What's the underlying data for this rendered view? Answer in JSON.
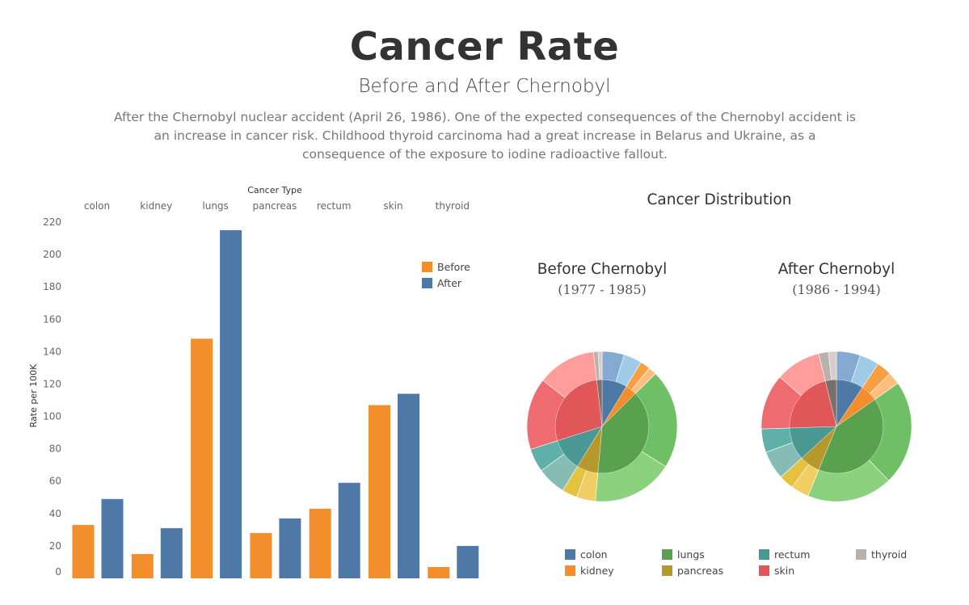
{
  "title": "Cancer Rate",
  "subtitle": "Before and After Chernobyl",
  "description": "After the Chernobyl nuclear accident (April 26, 1986). One of the expected consequences of the Chernobyl accident is an increase in cancer risk. Childhood thyroid carcinoma had a great increase in Belarus and Ukraine, as a consequence of the exposure to iodine radioactive fallout.",
  "chart_data": [
    {
      "type": "bar",
      "xlabel": "Cancer Type",
      "ylabel": "Rate per 100K",
      "categories": [
        "colon",
        "kidney",
        "lungs",
        "pancreas",
        "rectum",
        "skin",
        "thyroid"
      ],
      "yticks": [
        0,
        20,
        40,
        60,
        80,
        100,
        120,
        140,
        160,
        180,
        200,
        220
      ],
      "ylim": [
        0,
        220
      ],
      "legend_position": "top-right",
      "series": [
        {
          "name": "Before",
          "color": "#f28e2b",
          "values": [
            33,
            15,
            148,
            28,
            43,
            107,
            7
          ]
        },
        {
          "name": "After",
          "color": "#4e79a7",
          "values": [
            49,
            31,
            215,
            37,
            59,
            114,
            20
          ]
        }
      ]
    },
    {
      "type": "pie",
      "title": "Cancer Distribution",
      "charts": [
        {
          "title": "Before Chernobyl",
          "period": "(1977 - 1985)",
          "slices": [
            {
              "name": "colon",
              "value": 33
            },
            {
              "name": "kidney",
              "value": 15
            },
            {
              "name": "lungs",
              "value": 148
            },
            {
              "name": "pancreas",
              "value": 28
            },
            {
              "name": "rectum",
              "value": 43
            },
            {
              "name": "skin",
              "value": 107
            },
            {
              "name": "thyroid",
              "value": 7
            }
          ]
        },
        {
          "title": "After Chernobyl",
          "period": "(1986 - 1994)",
          "slices": [
            {
              "name": "colon",
              "value": 49
            },
            {
              "name": "kidney",
              "value": 31
            },
            {
              "name": "lungs",
              "value": 215
            },
            {
              "name": "pancreas",
              "value": 37
            },
            {
              "name": "rectum",
              "value": 59
            },
            {
              "name": "skin",
              "value": 114
            },
            {
              "name": "thyroid",
              "value": 20
            }
          ]
        }
      ],
      "legend": [
        {
          "name": "colon",
          "color": "#4e79a7"
        },
        {
          "name": "lungs",
          "color": "#59a14f"
        },
        {
          "name": "rectum",
          "color": "#499894"
        },
        {
          "name": "thyroid",
          "color": "#bab0ac"
        },
        {
          "name": "kidney",
          "color": "#f28e2b"
        },
        {
          "name": "pancreas",
          "color": "#b6992d"
        },
        {
          "name": "skin",
          "color": "#e15759"
        }
      ],
      "colors": {
        "colon": {
          "inner": "#4e79a7",
          "outer": [
            "#86a9d2",
            "#a0cbe8"
          ]
        },
        "kidney": {
          "inner": "#f28e2b",
          "outer": [
            "#f7a043",
            "#ffbe7d"
          ]
        },
        "lungs": {
          "inner": "#59a14f",
          "outer": [
            "#6fc064",
            "#8cd17d"
          ]
        },
        "pancreas": {
          "inner": "#b6992d",
          "outer": [
            "#f1ce63",
            "#e3c240"
          ]
        },
        "rectum": {
          "inner": "#499894",
          "outer": [
            "#86bcb6",
            "#5fb0a8"
          ]
        },
        "skin": {
          "inner": "#e15759",
          "outer": [
            "#ee6b70",
            "#ff9d9a"
          ]
        },
        "thyroid": {
          "inner": "#79706e",
          "outer": [
            "#bab0ac",
            "#d4cdc9"
          ]
        }
      }
    }
  ]
}
